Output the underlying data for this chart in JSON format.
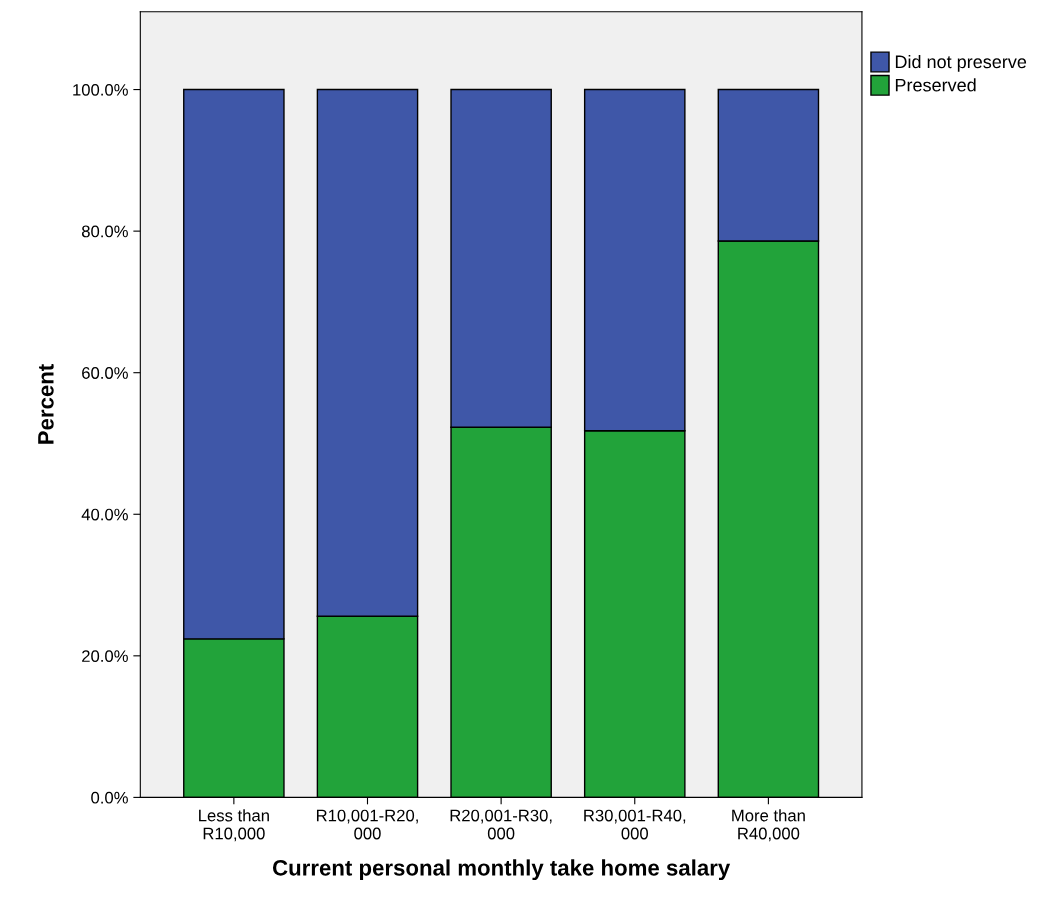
{
  "chart_data": {
    "type": "bar",
    "stacked": true,
    "xlabel": "Current personal monthly take home salary",
    "ylabel": "Percent",
    "categories": [
      "Less than\nR10,000",
      "R10,001-R20,\n000",
      "R20,001-R30,\n000",
      "R30,001-R40,\n000",
      "More than\nR40,000"
    ],
    "series": [
      {
        "name": "Preserved",
        "color": "#22a33a",
        "values": [
          22.4,
          25.6,
          52.3,
          51.8,
          78.6
        ]
      },
      {
        "name": "Did not preserve",
        "color": "#3f57a8",
        "values": [
          77.6,
          74.4,
          47.7,
          48.2,
          21.4
        ]
      }
    ],
    "ylim": [
      0,
      111
    ],
    "yticks": [
      {
        "value": 0,
        "label": "0.0%"
      },
      {
        "value": 20,
        "label": "20.0%"
      },
      {
        "value": 40,
        "label": "40.0%"
      },
      {
        "value": 60,
        "label": "60.0%"
      },
      {
        "value": 80,
        "label": "80.0%"
      },
      {
        "value": 100,
        "label": "100.0%"
      }
    ],
    "grid": false,
    "legend": "top right"
  }
}
